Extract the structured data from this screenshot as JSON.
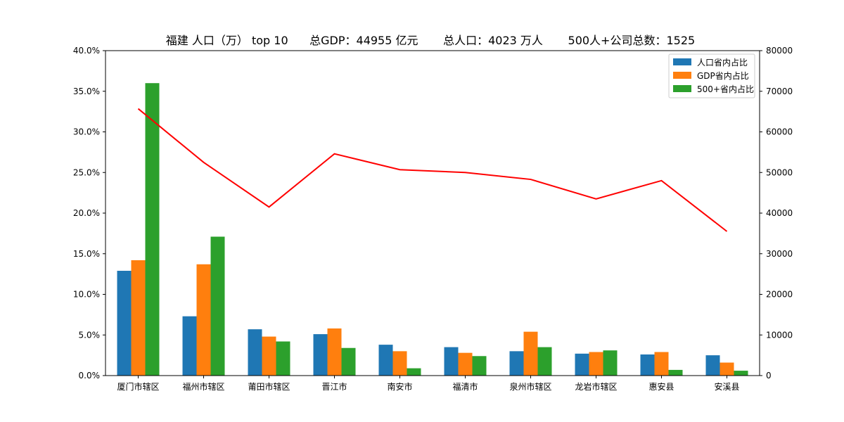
{
  "chart_data": {
    "type": "bar",
    "title": "福建 人口（万） top 10      总GDP：44955 亿元       总人口：4023 万人       500人+公司总数：1525",
    "categories": [
      "厦门市辖区",
      "福州市辖区",
      "莆田市辖区",
      "晋江市",
      "南安市",
      "福清市",
      "泉州市辖区",
      "龙岩市辖区",
      "惠安县",
      "安溪县"
    ],
    "series": [
      {
        "name": "人口省内占比",
        "color": "#1f77b4",
        "values": [
          12.9,
          7.3,
          5.7,
          5.1,
          3.8,
          3.5,
          3.0,
          2.7,
          2.6,
          2.5
        ]
      },
      {
        "name": "GDP省内占比",
        "color": "#ff7f0e",
        "values": [
          14.2,
          13.7,
          4.8,
          5.8,
          3.0,
          2.8,
          5.4,
          2.9,
          2.9,
          1.6
        ]
      },
      {
        "name": "500+省内占比",
        "color": "#2ca02c",
        "values": [
          36.0,
          17.1,
          4.2,
          3.4,
          0.9,
          2.4,
          3.5,
          3.1,
          0.7,
          0.6
        ]
      }
    ],
    "line": {
      "color": "#ff0000",
      "axis": "right",
      "values": [
        65700,
        52500,
        41500,
        54600,
        50700,
        50000,
        48300,
        43500,
        48000,
        35500
      ]
    },
    "left_axis": {
      "ylim": [
        0,
        40
      ],
      "ticks": [
        "0.0%",
        "5.0%",
        "10.0%",
        "15.0%",
        "20.0%",
        "25.0%",
        "30.0%",
        "35.0%",
        "40.0%"
      ]
    },
    "right_axis": {
      "ylim": [
        0,
        80000
      ],
      "ticks": [
        "0",
        "10000",
        "20000",
        "30000",
        "40000",
        "50000",
        "60000",
        "70000",
        "80000"
      ]
    },
    "legend": "top-right",
    "grid": false
  }
}
